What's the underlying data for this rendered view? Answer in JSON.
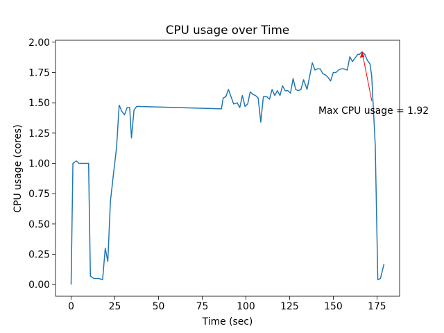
{
  "chart_data": {
    "type": "line",
    "title": "CPU usage over Time",
    "xlabel": "Time (sec)",
    "ylabel": "CPU usage (cores)",
    "x": [
      0,
      1,
      3,
      4.5,
      10,
      11,
      13,
      16,
      18,
      19.5,
      21,
      22.5,
      24.5,
      26,
      27.5,
      29,
      30.5,
      32,
      33.5,
      34.5,
      36,
      37.5,
      86,
      87,
      88.5,
      90,
      91.5,
      93,
      95,
      96.5,
      98,
      99.5,
      101,
      102.5,
      104,
      105.5,
      107,
      108.5,
      110,
      112,
      113.5,
      115,
      116.5,
      118,
      119.5,
      121,
      122.5,
      124,
      125.5,
      127,
      128.5,
      130,
      131.5,
      133,
      135,
      136.5,
      138,
      139.5,
      141,
      142.5,
      144,
      145.5,
      147,
      148.5,
      150,
      151.5,
      153,
      154.5,
      156,
      158,
      159.5,
      161,
      162.5,
      164,
      165,
      166.5,
      168,
      169.5,
      171,
      172,
      174,
      175.5,
      177,
      179
    ],
    "values": [
      0,
      1.0,
      1.02,
      1.0,
      1.0,
      0.07,
      0.05,
      0.05,
      0.04,
      0.3,
      0.19,
      0.69,
      0.95,
      1.13,
      1.48,
      1.43,
      1.4,
      1.46,
      1.46,
      1.21,
      1.44,
      1.47,
      1.45,
      1.54,
      1.55,
      1.61,
      1.55,
      1.49,
      1.5,
      1.46,
      1.56,
      1.47,
      1.49,
      1.59,
      1.57,
      1.56,
      1.54,
      1.34,
      1.55,
      1.55,
      1.53,
      1.61,
      1.56,
      1.6,
      1.56,
      1.64,
      1.6,
      1.6,
      1.58,
      1.7,
      1.61,
      1.6,
      1.61,
      1.69,
      1.61,
      1.72,
      1.83,
      1.77,
      1.78,
      1.78,
      1.74,
      1.73,
      1.71,
      1.68,
      1.75,
      1.75,
      1.77,
      1.78,
      1.78,
      1.77,
      1.88,
      1.84,
      1.87,
      1.9,
      1.9,
      1.92,
      1.9,
      1.85,
      1.82,
      1.72,
      1.15,
      0.04,
      0.05,
      0.17
    ],
    "color": "#1f77b4",
    "xlim": [
      -8.95,
      187.95
    ],
    "xticks": [
      0,
      25,
      50,
      75,
      100,
      125,
      150,
      175
    ],
    "ylim": [
      -0.096,
      2.016
    ],
    "yticks": [
      {
        "value": 0,
        "label": "0.00"
      },
      0.25,
      {
        "value": 0.5,
        "label": "0.50"
      },
      0.75,
      {
        "value": 1,
        "label": "1.00"
      },
      1.25,
      {
        "value": 1.5,
        "label": "1.50"
      },
      1.75,
      {
        "value": 2,
        "label": "2.00"
      }
    ],
    "annotation": {
      "text": "Max CPU usage = 1.92",
      "x": 166.5,
      "y": 1.92,
      "color": "red"
    }
  }
}
